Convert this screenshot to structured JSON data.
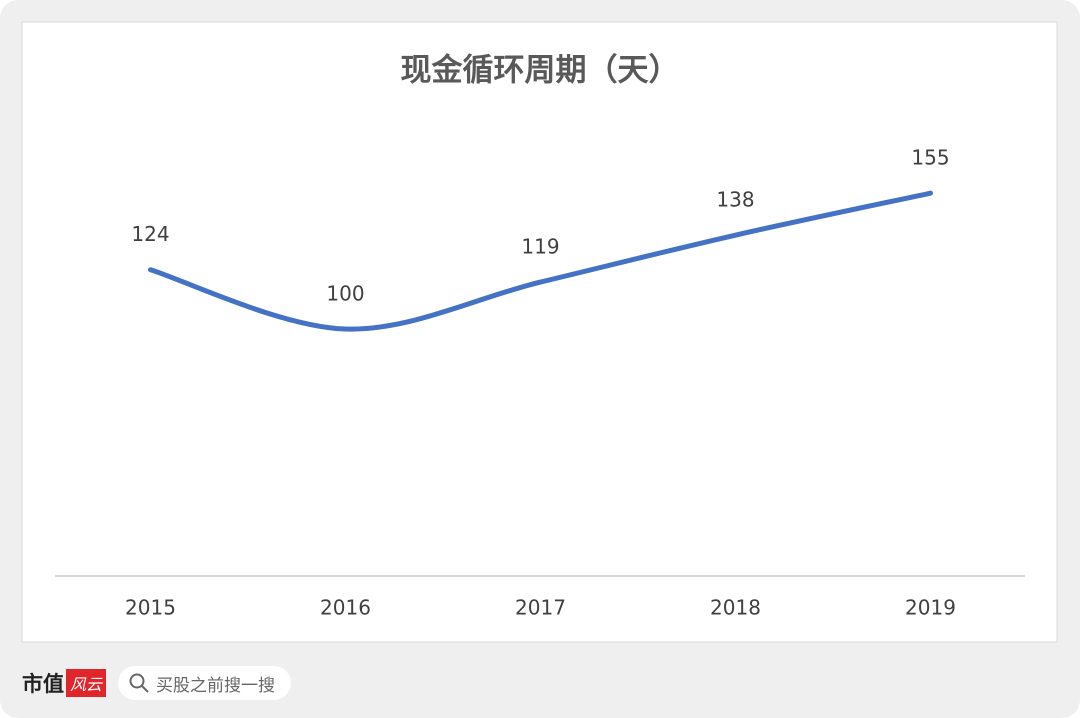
{
  "chart_data": {
    "type": "line",
    "title": "现金循环周期（天）",
    "categories": [
      "2015",
      "2016",
      "2017",
      "2018",
      "2019"
    ],
    "values": [
      124,
      100,
      119,
      138,
      155
    ],
    "color": "#4472c4",
    "ylim": [
      0,
      200
    ],
    "smooth": true,
    "data_labels": true
  },
  "footer": {
    "brand": "市值",
    "brand_mark": "风云",
    "search_placeholder": "买股之前搜一搜"
  }
}
